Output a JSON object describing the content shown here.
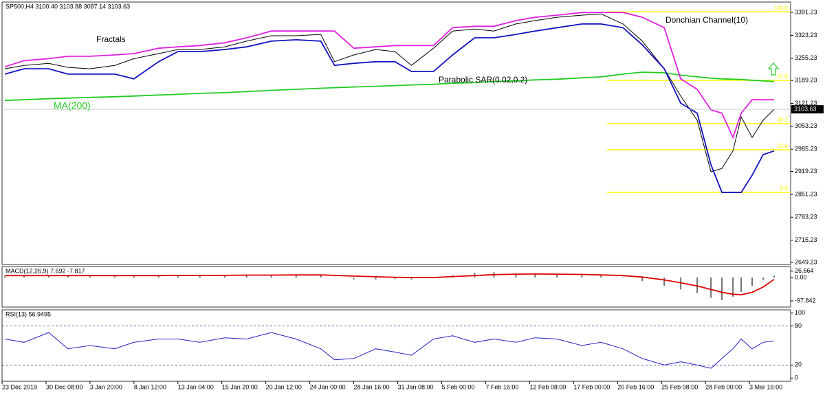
{
  "chart_data": [
    {
      "type": "line",
      "title": "SP500,H4 3100.40 3103.88 3087.14 3103.63",
      "x": [
        1,
        8,
        17,
        24,
        32,
        41,
        48,
        57,
        64,
        72,
        81,
        89,
        98,
        107,
        116,
        121,
        128,
        136,
        143,
        149,
        157,
        164,
        172,
        179,
        187,
        194,
        202,
        211,
        218,
        226,
        233,
        241,
        247,
        253,
        258,
        262,
        266,
        269,
        273,
        277,
        281
      ],
      "xlim": [
        0,
        287
      ],
      "ylim": [
        2643,
        3422
      ],
      "yticks": [
        3391.23,
        3323.23,
        3255.23,
        3189.23,
        3121.23,
        3053.23,
        2985.23,
        2919.23,
        2851.23,
        2783.23,
        2715.23,
        2649.23
      ],
      "series": [
        {
          "color": "#000000",
          "values": [
            3224,
            3234,
            3240,
            3228,
            3224,
            3234,
            3254,
            3269,
            3281,
            3281,
            3289,
            3306,
            3322,
            3322,
            3326,
            3245,
            3265,
            3281,
            3275,
            3234,
            3285,
            3336,
            3342,
            3336,
            3357,
            3367,
            3377,
            3383,
            3387,
            3357,
            3306,
            3224,
            3143,
            3071,
            2918,
            2928,
            2980,
            3081,
            3020,
            3071,
            3103.63
          ]
        },
        {
          "name": "MA(200)",
          "color": "#22cc22",
          "values": [
            3130,
            3132,
            3135,
            3137,
            3139,
            3141,
            3143,
            3146,
            3148,
            3151,
            3153,
            3156,
            3160,
            3163,
            3166,
            3168,
            3170,
            3172,
            3174,
            3176,
            3178,
            3181,
            3183,
            3186,
            3188,
            3191,
            3193,
            3197,
            3200,
            3208,
            3214,
            3212,
            3205,
            3200,
            3196,
            3194,
            3193,
            3192,
            3190,
            3188,
            3186
          ]
        },
        {
          "name": "Donchian Channel(10)",
          "color": "#e020e0",
          "values": [
            3230,
            3248,
            3254,
            3261,
            3261,
            3265,
            3269,
            3285,
            3289,
            3293,
            3301,
            3316,
            3336,
            3336,
            3336,
            3336,
            3285,
            3289,
            3293,
            3293,
            3293,
            3346,
            3350,
            3350,
            3367,
            3377,
            3383,
            3391,
            3391,
            3391,
            3377,
            3346,
            3194,
            3163,
            3102,
            3092,
            3020,
            3092,
            3132,
            3132,
            3132
          ]
        },
        {
          "color": "#1010c0",
          "values": [
            3208,
            3224,
            3224,
            3208,
            3208,
            3208,
            3194,
            3245,
            3275,
            3275,
            3281,
            3289,
            3306,
            3310,
            3306,
            3234,
            3240,
            3245,
            3245,
            3216,
            3216,
            3265,
            3316,
            3316,
            3326,
            3336,
            3346,
            3357,
            3357,
            3346,
            3295,
            3224,
            3122,
            3092,
            2939,
            2857,
            2857,
            2857,
            2908,
            2969,
            2980
          ]
        }
      ],
      "fib_levels": [
        {
          "name": "100.0",
          "value": 3393
        },
        {
          "name": "61.8",
          "value": 3189.4
        },
        {
          "name": "38.2",
          "value": 3061
        },
        {
          "name": "23.6",
          "value": 2983.6
        },
        {
          "name": "0.0",
          "value": 2857
        }
      ],
      "fib_color": "#ffff00",
      "annotations": [
        "Fractals",
        "Donchian Channel(10)",
        "Parabolic SAR(0.02,0.2)",
        "MA(200)"
      ]
    },
    {
      "type": "bar",
      "title": "MACD(12,26,9) 7.692 -7.817",
      "x": [
        1,
        8,
        17,
        24,
        32,
        41,
        48,
        57,
        64,
        72,
        81,
        89,
        98,
        107,
        116,
        121,
        128,
        136,
        143,
        149,
        157,
        164,
        172,
        179,
        187,
        194,
        202,
        211,
        218,
        226,
        233,
        241,
        247,
        253,
        258,
        262,
        266,
        269,
        273,
        277,
        281
      ],
      "xlim": [
        0,
        287
      ],
      "ylim": [
        -123.7,
        46
      ],
      "yticks": [
        26.664,
        {
          "value": 0,
          "label": "0.00"
        },
        -97.842
      ],
      "series": [
        {
          "type": "bar",
          "color": "#707070",
          "values": [
            5,
            8,
            8,
            6,
            5,
            6,
            8,
            10,
            10,
            9,
            9,
            10,
            12,
            12,
            12,
            -2,
            -8,
            -8,
            -6,
            -8,
            -2,
            10,
            20,
            22,
            18,
            15,
            12,
            10,
            8,
            2,
            -15,
            -35,
            -50,
            -65,
            -85,
            -95,
            -80,
            -60,
            -35,
            -10,
            7.692
          ]
        },
        {
          "type": "line",
          "color": "#dd0000",
          "values": [
            8,
            8,
            8,
            8,
            8,
            8,
            8,
            8,
            9,
            9,
            9,
            10,
            10,
            11,
            11,
            9,
            6,
            3,
            1,
            0,
            0,
            4,
            8,
            12,
            14,
            15,
            14,
            13,
            11,
            8,
            2,
            -10,
            -22,
            -35,
            -50,
            -62,
            -70,
            -72,
            -62,
            -40,
            -7.817
          ]
        }
      ]
    },
    {
      "type": "line",
      "title": "RSI(13) 56.9495",
      "x": [
        1,
        8,
        17,
        24,
        32,
        41,
        48,
        57,
        64,
        72,
        81,
        89,
        98,
        107,
        116,
        121,
        128,
        136,
        143,
        149,
        157,
        164,
        172,
        179,
        187,
        194,
        202,
        211,
        218,
        226,
        233,
        241,
        247,
        253,
        258,
        262,
        266,
        269,
        273,
        277,
        281
      ],
      "xlim": [
        0,
        287
      ],
      "ylim": [
        -5,
        105
      ],
      "yticks": [
        100,
        80,
        20,
        0
      ],
      "levels": [
        80,
        20
      ],
      "series": [
        {
          "color": "#2020c0",
          "values": [
            60,
            55,
            70,
            45,
            50,
            45,
            55,
            60,
            60,
            55,
            62,
            60,
            70,
            60,
            45,
            28,
            30,
            45,
            40,
            35,
            60,
            65,
            55,
            60,
            55,
            62,
            60,
            50,
            55,
            45,
            30,
            20,
            25,
            20,
            15,
            30,
            45,
            60,
            45,
            55,
            56.9495
          ]
        }
      ],
      "xticks": [
        {
          "value": 0,
          "label": "23 Dec 2019"
        },
        {
          "value": 16,
          "label": "30 Dec 08:00"
        },
        {
          "value": 32,
          "label": "3 Jan 20:00"
        },
        {
          "value": 48,
          "label": "8 Jan 12:00"
        },
        {
          "value": 64,
          "label": "13 Jan 04:00"
        },
        {
          "value": 80,
          "label": "15 Jan 20:00"
        },
        {
          "value": 96,
          "label": "20 Jan 12:00"
        },
        {
          "value": 112,
          "label": "24 Jan 00:00"
        },
        {
          "value": 128,
          "label": "28 Jan 16:00"
        },
        {
          "value": 144,
          "label": "31 Jan 08:00"
        },
        {
          "value": 160,
          "label": "5 Feb 00:00"
        },
        {
          "value": 176,
          "label": "7 Feb 16:00"
        },
        {
          "value": 192,
          "label": "12 Feb 08:00"
        },
        {
          "value": 208,
          "label": "17 Feb 00:00"
        },
        {
          "value": 224,
          "label": "20 Feb 16:00"
        },
        {
          "value": 240,
          "label": "25 Feb 08:00"
        },
        {
          "value": 256,
          "label": "28 Feb 00:00"
        },
        {
          "value": 272,
          "label": "3 Mar 16:00"
        }
      ]
    }
  ]
}
